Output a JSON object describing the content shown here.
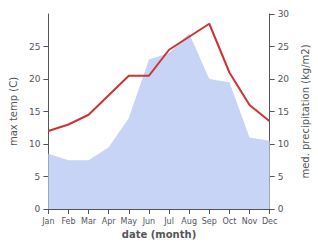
{
  "chart_data": {
    "type": "line",
    "xlabel": "date (month)",
    "ylabel": "max temp (C)",
    "y2label": "med. precipitation (kg/m2)",
    "categories": [
      "Jan",
      "Feb",
      "Mar",
      "Apr",
      "May",
      "Jun",
      "Jul",
      "Aug",
      "Sep",
      "Oct",
      "Nov",
      "Dec"
    ],
    "series": [
      {
        "type": "area",
        "axis": "y2",
        "color": "#c8d4f5",
        "values": [
          8.5,
          7.5,
          7.5,
          9.5,
          14.0,
          23.0,
          24.0,
          27.0,
          20.0,
          19.5,
          11.0,
          10.5
        ]
      },
      {
        "type": "line",
        "color": "#cc3333",
        "values": [
          12.0,
          13.0,
          14.5,
          17.5,
          20.5,
          20.5,
          24.5,
          26.5,
          28.5,
          21.0,
          16.0,
          13.5
        ]
      }
    ],
    "ylim": [
      0,
      30
    ],
    "yticks": [
      0,
      5,
      10,
      15,
      20,
      25
    ],
    "y2lim": [
      0,
      30
    ],
    "y2ticks": [
      0,
      5,
      10,
      15,
      20,
      25,
      30
    ],
    "grid": false
  }
}
